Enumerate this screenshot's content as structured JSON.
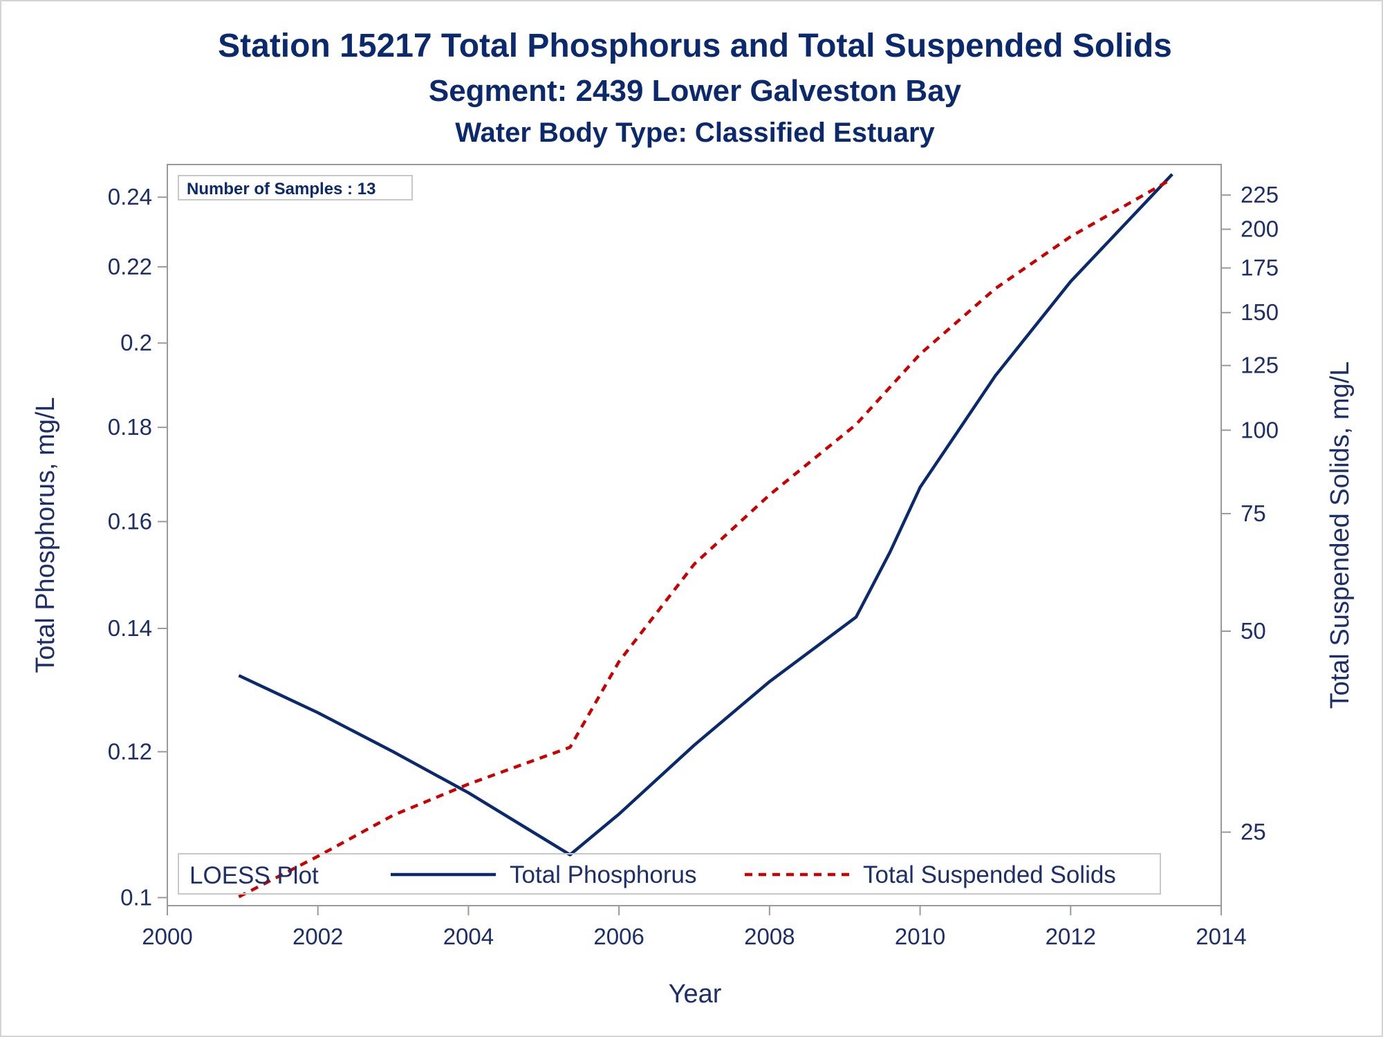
{
  "titles": {
    "line1": "Station 15217  Total Phosphorus and Total Suspended Solids",
    "line2": "Segment: 2439  Lower Galveston Bay",
    "line3": "Water Body Type: Classified Estuary"
  },
  "inset": {
    "text": "Number of Samples : 13"
  },
  "legend": {
    "title": "LOESS Plot",
    "items": [
      {
        "label": "Total Phosphorus",
        "color": "#0b2a6e",
        "style": "solid"
      },
      {
        "label": "Total Suspended Solids",
        "color": "#cc0000",
        "style": "dashed"
      }
    ]
  },
  "colors": {
    "text": "#1c2f6b",
    "title": "#0b2a6e",
    "frame": "#9a9a9a"
  },
  "chart_data": {
    "type": "line",
    "title": "Station 15217  Total Phosphorus and Total Suspended Solids",
    "xlabel": "Year",
    "ylabel": "Total Phosphorus, mg/L",
    "y2label": "Total Suspended Solids, mg/L",
    "xlim": [
      2000,
      2014
    ],
    "x_ticks": [
      2000,
      2002,
      2004,
      2006,
      2008,
      2010,
      2012,
      2014
    ],
    "y_scale": "log",
    "ylim": [
      0.099,
      0.25
    ],
    "y_ticks": [
      0.1,
      0.12,
      0.14,
      0.16,
      0.18,
      0.2,
      0.22,
      0.24
    ],
    "y_tick_labels": [
      "0.1",
      "0.12",
      "0.14",
      "0.16",
      "0.18",
      "0.2",
      "0.22",
      "0.24"
    ],
    "y2_scale": "log",
    "y2lim": [
      19.4,
      250
    ],
    "y2_ticks": [
      25,
      50,
      75,
      100,
      125,
      150,
      175,
      200,
      225
    ],
    "grid": false,
    "legend_position": "bottom-inside",
    "series": [
      {
        "name": "Total Phosphorus",
        "axis": "left",
        "x": [
          2000.95,
          2002,
          2003,
          2004,
          2005.35,
          2006,
          2007,
          2008,
          2009.15,
          2009.6,
          2010,
          2011,
          2012,
          2013.35
        ],
        "y": [
          0.132,
          0.126,
          0.12,
          0.114,
          0.1055,
          0.111,
          0.121,
          0.131,
          0.142,
          0.154,
          0.167,
          0.192,
          0.216,
          0.247
        ]
      },
      {
        "name": "Total Suspended Solids",
        "axis": "right",
        "x": [
          2000.95,
          2002,
          2003,
          2004,
          2005.35,
          2006,
          2007,
          2008,
          2009.15,
          2010,
          2011,
          2012,
          2013.35
        ],
        "y": [
          20,
          23,
          26.5,
          29.5,
          33.5,
          45,
          63,
          80,
          102,
          130,
          163,
          195,
          238
        ]
      }
    ]
  }
}
